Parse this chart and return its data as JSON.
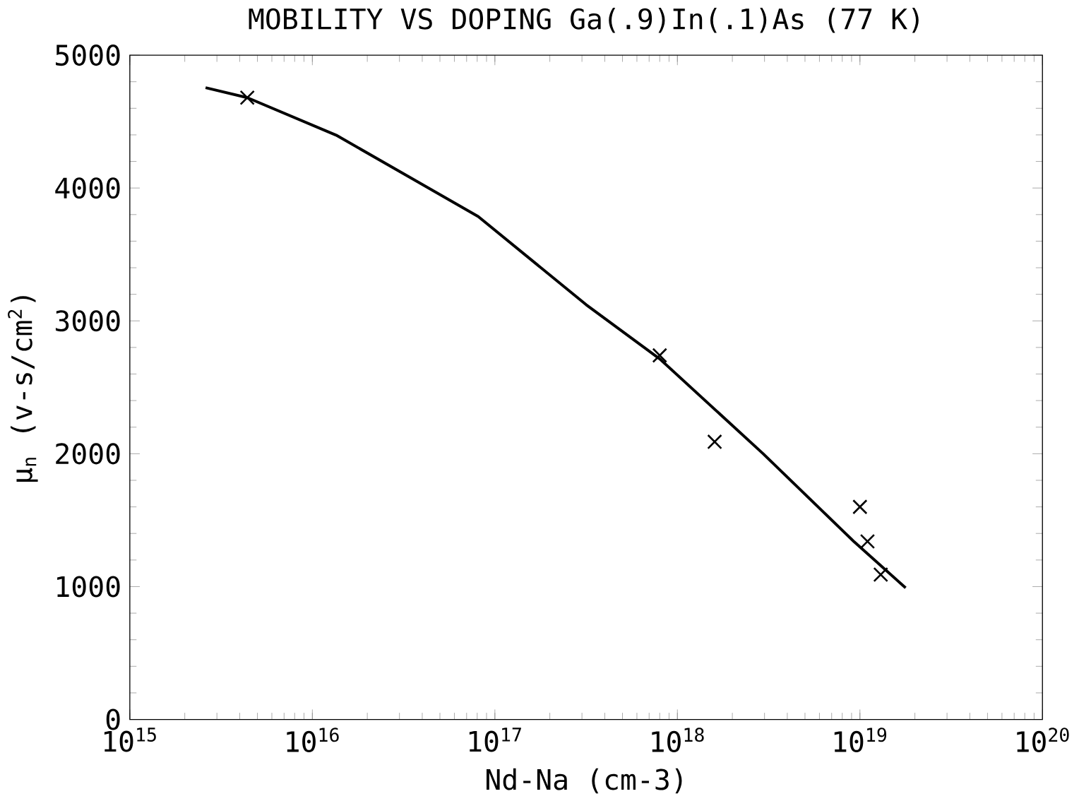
{
  "chart_data": {
    "type": "scatter",
    "title": "MOBILITY VS DOPING Ga(.9)In(.1)As (77 K)",
    "xlabel": "Nd-Na (cm-3)",
    "ylabel": "μ$_{n}$ (v-s/cm$^{2}$)",
    "log": "x",
    "xlim": [
      1000000000000000.0,
      1e+20
    ],
    "ylim": [
      0,
      5000
    ],
    "xticks": [
      {
        "value": 1000000000000000.0,
        "label": "10$^{15}$"
      },
      {
        "value": 1e+16,
        "label": "10$^{16}$"
      },
      {
        "value": 1e+17,
        "label": "10$^{17}$"
      },
      {
        "value": 1e+18,
        "label": "10$^{18}$"
      },
      {
        "value": 1e+19,
        "label": "10$^{19}$"
      },
      {
        "value": 1e+20,
        "label": "10$^{20}$"
      }
    ],
    "yticks": [
      0,
      1000,
      2000,
      3000,
      4000,
      5000
    ],
    "series": [
      {
        "type": "line",
        "color": "#000000",
        "marker": "none",
        "line_style": "solid",
        "x": [
          2600000000000000.0,
          4400000000000000.0,
          1.35e+16,
          8.1e+16,
          3.16e+17,
          8e+17,
          2.95e+18,
          9.3e+18,
          1.78e+19
        ],
        "values": [
          4755,
          4680,
          4398,
          3786,
          3122,
          2714,
          2000,
          1337,
          990
        ]
      },
      {
        "color": "#000000",
        "marker": "cross",
        "x": [
          4400000000000000.0,
          8e+17,
          1.6e+18,
          1e+19,
          1.1e+19,
          1.3e+19
        ],
        "values": [
          4680,
          2740,
          2090,
          1600,
          1340,
          1090
        ]
      }
    ]
  }
}
